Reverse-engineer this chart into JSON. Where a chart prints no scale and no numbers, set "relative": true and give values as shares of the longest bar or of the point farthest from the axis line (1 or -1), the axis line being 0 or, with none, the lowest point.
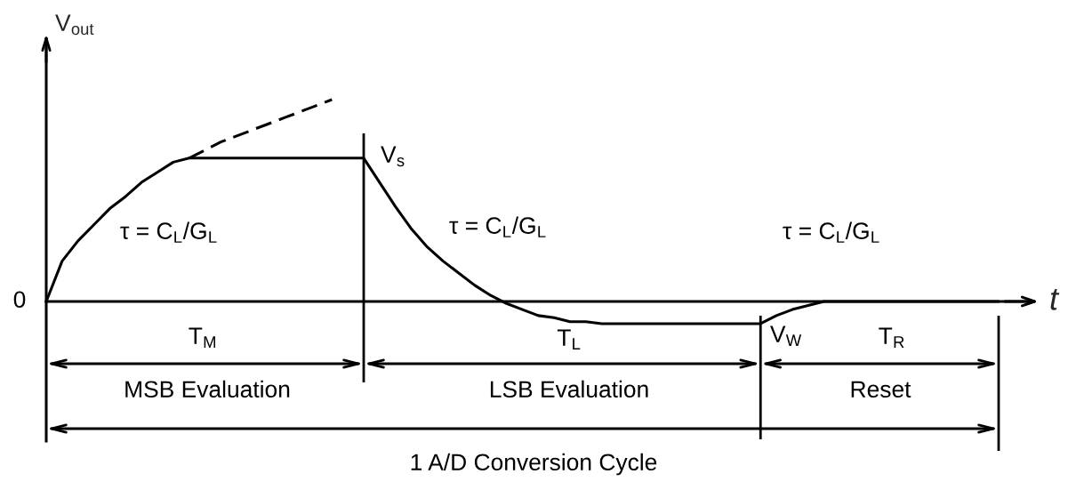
{
  "chart_data": {
    "type": "line",
    "relative": true,
    "xlabel": "t",
    "ylabel": "V$_{out}$",
    "categories": [
      null,
      null,
      null,
      null,
      null,
      null,
      null,
      null,
      null,
      null,
      null,
      null,
      null,
      null,
      null,
      null,
      null,
      null,
      null,
      null,
      null,
      null,
      null,
      null,
      null,
      null,
      null,
      null,
      null,
      null,
      null,
      null,
      null,
      null,
      null,
      null,
      null,
      null,
      null,
      null,
      null,
      null,
      null,
      null,
      null,
      null,
      null,
      null,
      null,
      null,
      null,
      null,
      null,
      null,
      null,
      null,
      null,
      null,
      null,
      null,
      null
    ],
    "series": [
      {
        "color": "#000000",
        "line_style": "solid",
        "values": [
          0,
          0.2,
          0.3,
          0.38,
          0.46,
          0.52,
          0.59,
          0.64,
          0.69,
          0.71,
          0.71,
          0.71,
          0.71,
          0.71,
          0.71,
          0.71,
          0.71,
          0.71,
          0.71,
          0.71,
          0.71,
          0.59,
          0.47,
          0.36,
          0.27,
          0.2,
          0.14,
          0.08,
          0.03,
          -0.01,
          -0.04,
          -0.07,
          -0.08,
          -0.1,
          -0.1,
          -0.11,
          -0.11,
          -0.11,
          -0.11,
          -0.11,
          -0.11,
          -0.11,
          -0.11,
          -0.11,
          -0.11,
          -0.11,
          -0.07,
          -0.04,
          -0.02,
          0,
          0,
          0,
          0,
          0,
          0,
          0,
          0,
          0,
          0,
          0,
          0
        ]
      },
      {
        "color": "#000000",
        "line_style": "dashed",
        "values": [
          null,
          null,
          null,
          null,
          null,
          null,
          null,
          null,
          null,
          0.71,
          0.75,
          0.79,
          0.82,
          0.85,
          0.88,
          0.91,
          0.94,
          0.97,
          1.0,
          null,
          null,
          null,
          null,
          null,
          null,
          null,
          null,
          null,
          null,
          null,
          null,
          null,
          null,
          null,
          null,
          null,
          null,
          null,
          null,
          null,
          null,
          null,
          null,
          null,
          null,
          null,
          null,
          null,
          null,
          null,
          null,
          null,
          null,
          null,
          null,
          null,
          null,
          null,
          null,
          null,
          null
        ]
      }
    ],
    "annotations": [
      "0",
      "τ = C$_{L}$/G$_{L}$",
      "V$_{s}$",
      "τ = C$_{L}$/G$_{L}$",
      "τ = C$_{L}$/G$_{L}$",
      "T$_{M}$",
      "T$_{L}$",
      "V$_{W}$",
      "T$_{R}$",
      "MSB Evaluation",
      "LSB Evaluation",
      "Reset",
      "1 A/D Conversion Cycle"
    ]
  }
}
